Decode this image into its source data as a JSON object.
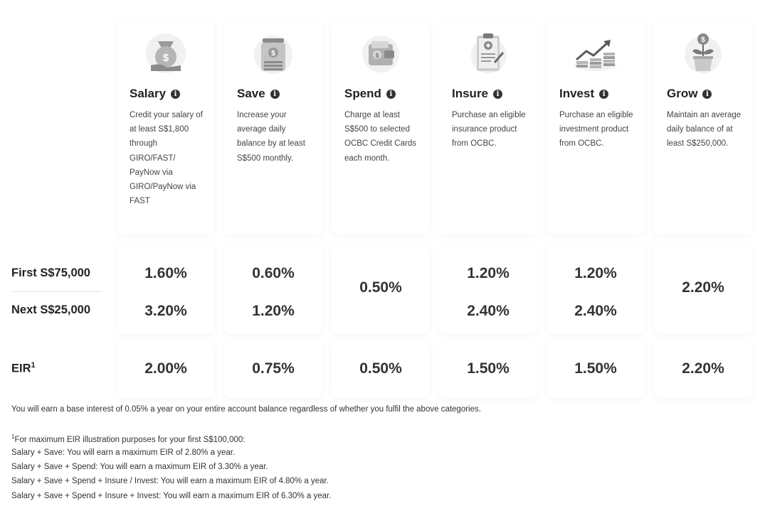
{
  "categories": [
    {
      "key": "salary",
      "title": "Salary",
      "desc": "Credit your salary of at least S$1,800 through GIRO/FAST/ PayNow via GIRO/PayNow via FAST",
      "first": "1.60%",
      "next": "3.20%",
      "eir": "2.00%",
      "icon": "money-bag-hand-icon"
    },
    {
      "key": "save",
      "title": "Save",
      "desc": "Increase your average daily balance by at least S$500 monthly.",
      "first": "0.60%",
      "next": "1.20%",
      "eir": "0.75%",
      "icon": "coin-stack-jar-icon"
    },
    {
      "key": "spend",
      "title": "Spend",
      "desc": "Charge at least S$500 to selected OCBC Credit Cards each month.",
      "combined": "0.50%",
      "eir": "0.50%",
      "icon": "wallet-icon"
    },
    {
      "key": "insure",
      "title": "Insure",
      "desc": "Purchase an eligible insurance product from OCBC.",
      "first": "1.20%",
      "next": "2.40%",
      "eir": "1.50%",
      "icon": "clipboard-document-icon"
    },
    {
      "key": "invest",
      "title": "Invest",
      "desc": "Purchase an eligible investment product from OCBC.",
      "first": "1.20%",
      "next": "2.40%",
      "eir": "1.50%",
      "icon": "growth-chart-coins-icon"
    },
    {
      "key": "grow",
      "title": "Grow",
      "desc": "Maintain an average daily balance of at least S$250,000.",
      "combined": "2.20%",
      "eir": "2.20%",
      "icon": "plant-pot-coin-icon"
    }
  ],
  "rows": {
    "first": "First S$75,000",
    "next": "Next S$25,000",
    "eir": "EIR",
    "eir_sup": "1"
  },
  "notes": {
    "base": "You will earn a base interest of 0.05% a year on your entire account balance regardless of whether you fulfil the above categories.",
    "footnote_sup": "1",
    "footnote": "For maximum EIR illustration purposes for your first S$100,000:",
    "lines": [
      "Salary + Save: You will earn a maximum EIR of 2.80% a year.",
      "Salary + Save + Spend: You will earn a maximum EIR of 3.30% a year.",
      "Salary + Save + Spend + Insure / Invest: You will earn a maximum EIR of 4.80% a year.",
      "Salary + Save + Spend + Insure + Invest: You will earn a maximum EIR of 6.30% a year."
    ]
  },
  "info_glyph": "i"
}
